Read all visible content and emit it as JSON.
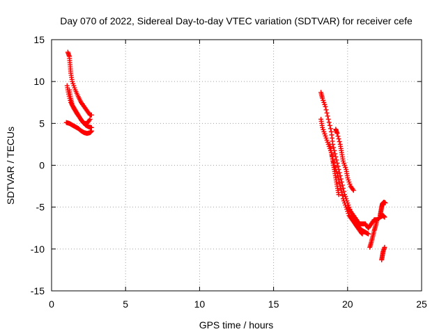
{
  "chart_data": {
    "type": "scatter",
    "title": "Day 070 of 2022, Sidereal Day-to-day VTEC variation (SDTVAR) for receiver cefe",
    "xlabel": "GPS time / hours",
    "ylabel": "SDTVAR / TECUs",
    "xlim": [
      0,
      25
    ],
    "ylim": [
      -15,
      15
    ],
    "xticks": [
      0,
      5,
      10,
      15,
      20,
      25
    ],
    "yticks": [
      -15,
      -10,
      -5,
      0,
      5,
      10,
      15
    ],
    "grid": true,
    "marker": "plus",
    "color": "#ff0000",
    "series": [
      {
        "name": "tracks",
        "tracks": [
          [
            [
              1.1,
              13.5
            ],
            [
              1.2,
              13.0
            ],
            [
              1.25,
              12.0
            ],
            [
              1.3,
              11.0
            ],
            [
              1.4,
              10.0
            ],
            [
              1.6,
              9.0
            ],
            [
              1.8,
              8.2
            ],
            [
              2.0,
              7.5
            ],
            [
              2.2,
              7.0
            ],
            [
              2.4,
              6.5
            ],
            [
              2.6,
              6.0
            ],
            [
              2.7,
              6.0
            ]
          ],
          [
            [
              1.05,
              9.5
            ],
            [
              1.15,
              8.5
            ],
            [
              1.3,
              7.5
            ],
            [
              1.5,
              6.8
            ],
            [
              1.7,
              6.2
            ],
            [
              1.9,
              5.7
            ],
            [
              2.1,
              5.2
            ],
            [
              2.3,
              4.8
            ],
            [
              2.5,
              4.6
            ],
            [
              2.7,
              4.5
            ]
          ],
          [
            [
              1.2,
              9.0
            ],
            [
              1.3,
              8.0
            ],
            [
              1.4,
              7.2
            ],
            [
              1.6,
              6.6
            ],
            [
              1.8,
              6.0
            ],
            [
              2.0,
              5.4
            ],
            [
              2.2,
              5.0
            ],
            [
              2.4,
              5.0
            ],
            [
              2.6,
              5.5
            ]
          ],
          [
            [
              1.0,
              5.1
            ],
            [
              1.2,
              5.0
            ],
            [
              1.4,
              4.8
            ],
            [
              1.6,
              4.6
            ],
            [
              1.8,
              4.4
            ],
            [
              2.0,
              4.1
            ],
            [
              2.2,
              3.9
            ],
            [
              2.4,
              3.8
            ],
            [
              2.6,
              3.9
            ],
            [
              2.7,
              4.1
            ]
          ],
          [
            [
              18.2,
              8.7
            ],
            [
              18.3,
              8.0
            ],
            [
              18.5,
              7.0
            ],
            [
              18.7,
              5.5
            ],
            [
              18.9,
              4.0
            ],
            [
              19.0,
              2.5
            ],
            [
              19.2,
              1.0
            ],
            [
              19.4,
              -0.5
            ],
            [
              19.6,
              -2.0
            ],
            [
              19.8,
              -3.5
            ],
            [
              20.0,
              -4.5
            ],
            [
              20.2,
              -5.5
            ],
            [
              20.4,
              -6.5
            ],
            [
              20.6,
              -7.0
            ],
            [
              20.8,
              -7.5
            ],
            [
              21.0,
              -7.8
            ],
            [
              21.2,
              -8.0
            ],
            [
              21.4,
              -8.2
            ]
          ],
          [
            [
              18.2,
              5.5
            ],
            [
              18.3,
              4.5
            ],
            [
              18.5,
              3.5
            ],
            [
              18.7,
              2.5
            ],
            [
              18.9,
              1.5
            ],
            [
              19.1,
              0.0
            ],
            [
              19.3,
              -1.0
            ],
            [
              19.5,
              -2.5
            ],
            [
              19.7,
              -4.0
            ],
            [
              19.9,
              -5.0
            ],
            [
              20.1,
              -6.0
            ],
            [
              20.3,
              -6.5
            ],
            [
              20.5,
              -7.0
            ],
            [
              20.7,
              -7.5
            ],
            [
              20.9,
              -8.0
            ],
            [
              21.0,
              -8.2
            ]
          ],
          [
            [
              19.2,
              4.3
            ],
            [
              19.3,
              3.8
            ],
            [
              19.5,
              2.5
            ],
            [
              19.6,
              1.5
            ],
            [
              19.7,
              0.5
            ],
            [
              19.9,
              -0.5
            ],
            [
              20.0,
              -1.5
            ],
            [
              20.2,
              -2.5
            ],
            [
              20.4,
              -3.0
            ]
          ],
          [
            [
              18.8,
              2.5
            ],
            [
              18.9,
              1.5
            ],
            [
              19.0,
              0.5
            ],
            [
              19.1,
              -0.5
            ],
            [
              19.2,
              -1.5
            ],
            [
              19.3,
              -2.5
            ],
            [
              19.4,
              -3.5
            ]
          ],
          [
            [
              20.0,
              -5.0
            ],
            [
              20.2,
              -5.5
            ],
            [
              20.4,
              -6.0
            ],
            [
              20.6,
              -6.5
            ],
            [
              20.8,
              -7.0
            ],
            [
              21.0,
              -7.0
            ],
            [
              21.2,
              -7.0
            ],
            [
              21.4,
              -7.5
            ],
            [
              21.6,
              -7.0
            ],
            [
              21.8,
              -6.5
            ],
            [
              22.0,
              -6.5
            ],
            [
              22.2,
              -6.2
            ],
            [
              22.4,
              -6.0
            ],
            [
              22.5,
              -6.2
            ]
          ],
          [
            [
              21.5,
              -9.8
            ],
            [
              21.6,
              -9.2
            ],
            [
              21.7,
              -8.5
            ],
            [
              21.8,
              -7.8
            ],
            [
              21.9,
              -7.2
            ],
            [
              22.0,
              -6.5
            ]
          ],
          [
            [
              22.2,
              -6.0
            ],
            [
              22.25,
              -5.5
            ],
            [
              22.3,
              -5.0
            ],
            [
              22.35,
              -4.6
            ],
            [
              22.45,
              -4.4
            ],
            [
              22.55,
              -4.5
            ]
          ],
          [
            [
              22.3,
              -11.3
            ],
            [
              22.35,
              -10.8
            ],
            [
              22.4,
              -10.3
            ],
            [
              22.5,
              -9.8
            ]
          ]
        ]
      }
    ]
  }
}
